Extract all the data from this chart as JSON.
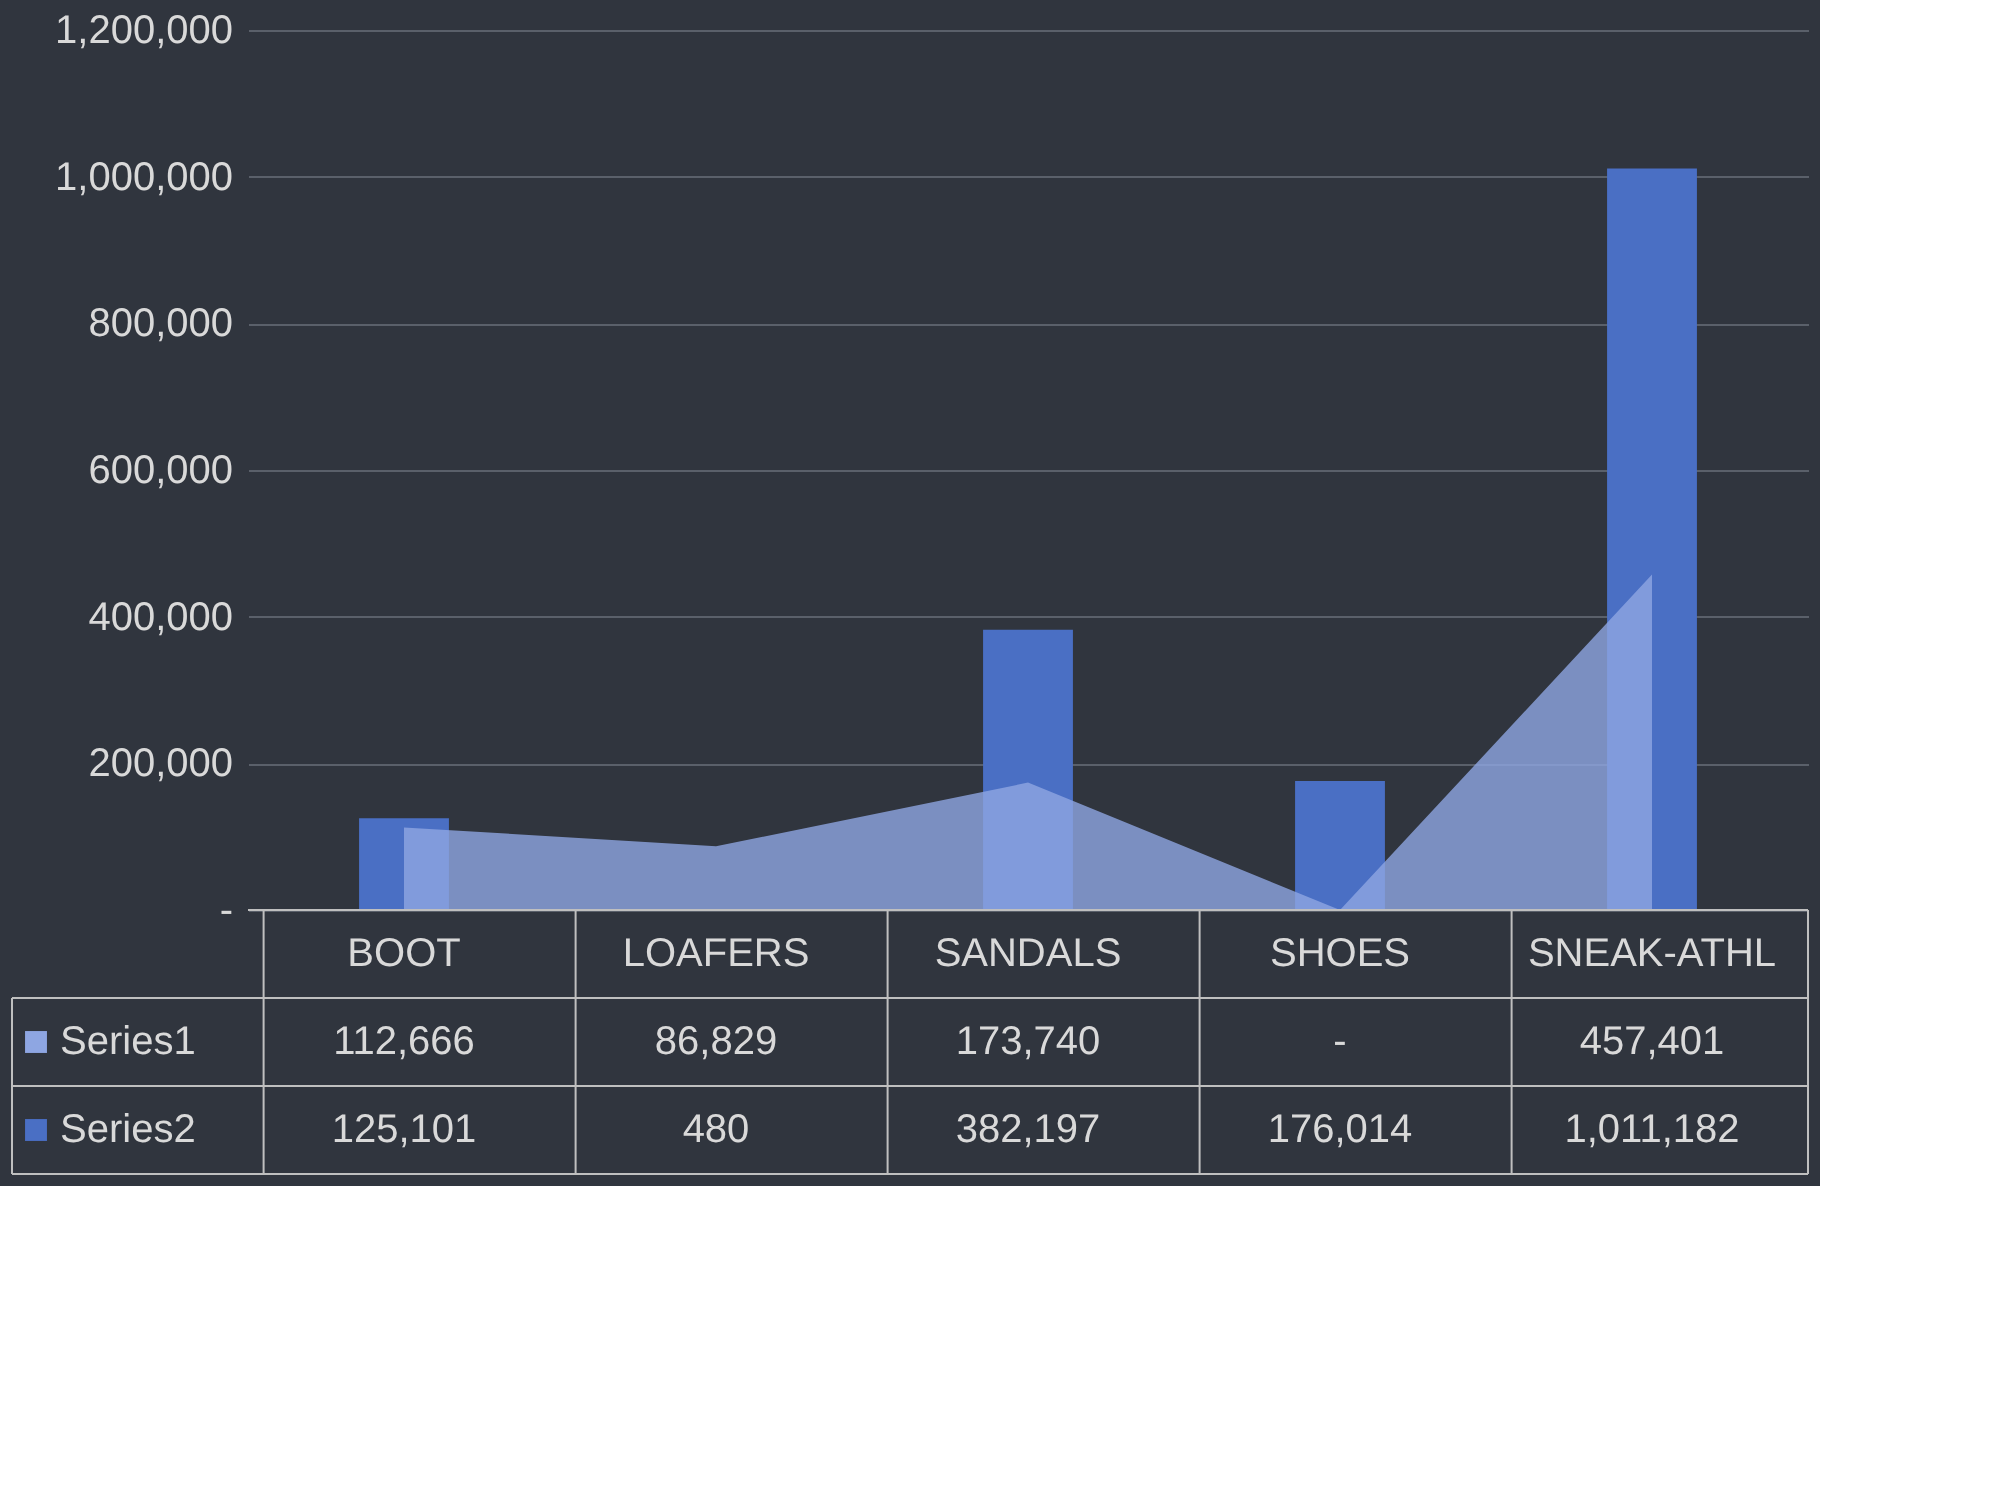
{
  "chart_data": {
    "type": "bar",
    "categories": [
      "BOOT",
      "LOAFERS",
      "SANDALS",
      "SHOES",
      "SNEAK-ATHL"
    ],
    "series": [
      {
        "name": "Series1",
        "type": "area",
        "color": "#8ea6e2",
        "values": [
          112666,
          86829,
          173740,
          0,
          457401
        ],
        "value_labels": [
          "112,666",
          "86,829",
          "173,740",
          "-",
          "457,401"
        ]
      },
      {
        "name": "Series2",
        "color": "#4a6fc4",
        "values": [
          125101,
          480,
          382197,
          176014,
          1011182
        ],
        "value_labels": [
          "125,101",
          "480",
          "382,197",
          "176,014",
          "1,011,182"
        ]
      }
    ],
    "ylim": [
      0,
      1200000
    ],
    "yticks": [
      {
        "value": 0,
        "label": "-"
      },
      {
        "value": 200000,
        "label": "200,000"
      },
      {
        "value": 400000,
        "label": "400,000"
      },
      {
        "value": 600000,
        "label": "600,000"
      },
      {
        "value": 800000,
        "label": "800,000"
      },
      {
        "value": 1000000,
        "label": "1,000,000"
      },
      {
        "value": 1200000,
        "label": "1,200,000"
      }
    ],
    "grid": "y",
    "legend": "bottom"
  }
}
